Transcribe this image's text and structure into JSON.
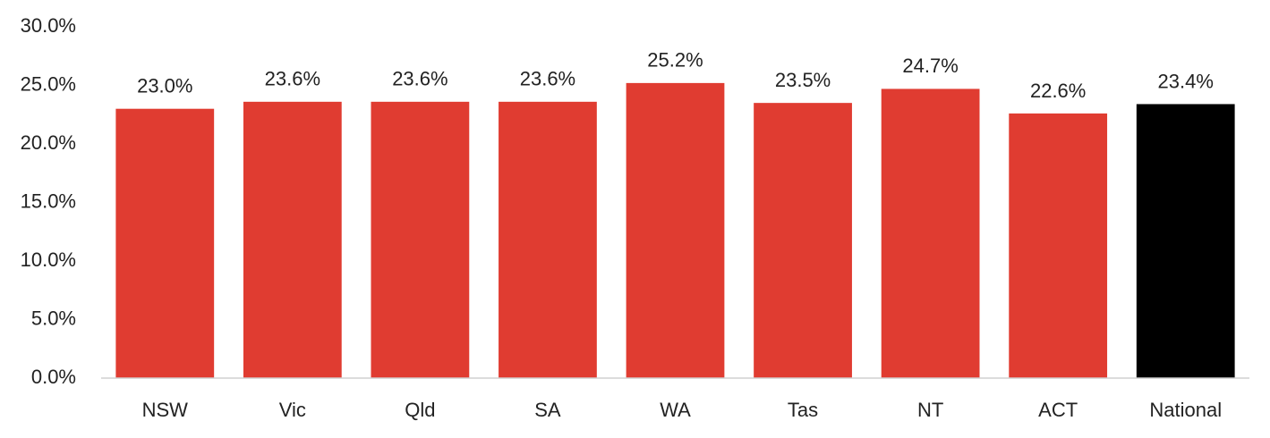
{
  "chart_data": {
    "type": "bar",
    "categories": [
      "NSW",
      "Vic",
      "Qld",
      "SA",
      "WA",
      "Tas",
      "NT",
      "ACT",
      "National"
    ],
    "values": [
      23.0,
      23.6,
      23.6,
      23.6,
      25.2,
      23.5,
      24.7,
      22.6,
      23.4
    ],
    "value_labels": [
      "23.0%",
      "23.6%",
      "23.6%",
      "23.6%",
      "25.2%",
      "23.5%",
      "24.7%",
      "22.6%",
      "23.4%"
    ],
    "colors": [
      "#e03c31",
      "#e03c31",
      "#e03c31",
      "#e03c31",
      "#e03c31",
      "#e03c31",
      "#e03c31",
      "#e03c31",
      "#000000"
    ],
    "ylim": [
      0,
      30
    ],
    "yticks": [
      {
        "value": 0,
        "label": "0.0%"
      },
      {
        "value": 5,
        "label": "5.0%"
      },
      {
        "value": 10,
        "label": "10.0%"
      },
      {
        "value": 15,
        "label": "15.0%"
      },
      {
        "value": 20,
        "label": "20.0%"
      },
      {
        "value": 25,
        "label": "25.0%"
      },
      {
        "value": 30,
        "label": "30.0%"
      }
    ],
    "grid": false
  }
}
